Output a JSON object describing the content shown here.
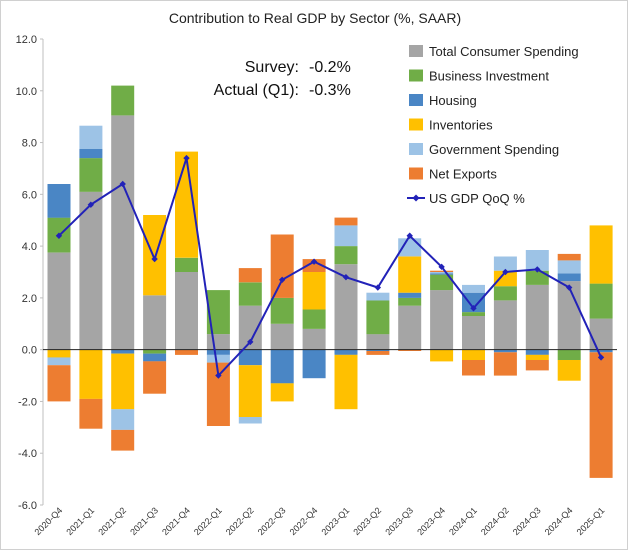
{
  "chart_data": {
    "type": "stacked-bar-with-line",
    "title": "Contribution to Real GDP by Sector (%, SAAR)",
    "ylim": [
      -6,
      12
    ],
    "yticks": [
      -6,
      -4,
      -2,
      0,
      2,
      4,
      6,
      8,
      10,
      12
    ],
    "ytick_labels": [
      "-6.0",
      "-4.0",
      "-2.0",
      "0.0",
      "2.0",
      "4.0",
      "6.0",
      "8.0",
      "10.0",
      "12.0"
    ],
    "categories": [
      "2020-Q4",
      "2021-Q1",
      "2021-Q2",
      "2021-Q3",
      "2021-Q4",
      "2022-Q1",
      "2022-Q2",
      "2022-Q3",
      "2022-Q4",
      "2023-Q1",
      "2023-Q2",
      "2023-Q3",
      "2023-Q4",
      "2024-Q1",
      "2024-Q2",
      "2024-Q3",
      "2024-Q4",
      "2025-Q1"
    ],
    "annotation": {
      "survey_label": "Survey:",
      "survey_value": "-0.2%",
      "actual_label": "Actual (Q1):",
      "actual_value": "-0.3%"
    },
    "series": [
      {
        "name": "Total Consumer Spending",
        "color": "#a5a5a5",
        "values": [
          3.75,
          6.1,
          9.05,
          2.1,
          3.0,
          0.6,
          1.7,
          1.0,
          0.8,
          3.3,
          0.6,
          1.7,
          2.3,
          1.3,
          1.9,
          2.5,
          2.65,
          1.2
        ]
      },
      {
        "name": "Business Investment",
        "color": "#70ad47",
        "values": [
          1.35,
          1.3,
          1.15,
          -0.15,
          0.55,
          1.7,
          0.9,
          1.0,
          0.75,
          0.7,
          1.3,
          0.3,
          0.6,
          0.15,
          0.55,
          0.55,
          -0.4,
          1.35
        ]
      },
      {
        "name": "Housing",
        "color": "#4a86c5",
        "values": [
          1.3,
          0.35,
          -0.15,
          -0.3,
          0.0,
          -0.2,
          -0.6,
          -1.3,
          -1.1,
          -0.2,
          -0.05,
          0.2,
          0.05,
          0.75,
          -0.1,
          -0.2,
          0.3,
          -0.1
        ]
      },
      {
        "name": "Inventories",
        "color": "#ffc000",
        "values": [
          -0.3,
          -1.9,
          -2.15,
          3.1,
          4.1,
          0.0,
          -2.0,
          -0.7,
          1.45,
          -2.1,
          0.0,
          1.4,
          -0.45,
          -0.4,
          0.6,
          -0.2,
          -0.8,
          2.25
        ]
      },
      {
        "name": "Government Spending",
        "color": "#9dc3e6",
        "values": [
          -0.3,
          0.9,
          -0.8,
          0.0,
          0.0,
          -0.3,
          -0.25,
          0.0,
          0.0,
          0.8,
          0.3,
          0.7,
          0.05,
          0.3,
          0.55,
          0.8,
          0.5,
          0.0
        ]
      },
      {
        "name": "Net Exports",
        "color": "#ed7d31",
        "values": [
          -1.4,
          -1.15,
          -0.8,
          -1.25,
          -0.2,
          -2.45,
          0.55,
          2.45,
          0.5,
          0.3,
          -0.15,
          -0.05,
          0.05,
          -0.6,
          -0.9,
          -0.4,
          0.25,
          -4.85
        ]
      }
    ],
    "line": {
      "name": "US GDP QoQ %",
      "color": "#2222b8",
      "values": [
        4.4,
        5.6,
        6.4,
        3.5,
        7.4,
        -1.0,
        0.3,
        2.7,
        3.4,
        2.8,
        2.4,
        4.4,
        3.2,
        1.6,
        3.0,
        3.1,
        2.4,
        -0.3
      ]
    },
    "legend_position": "top-right",
    "grid": false
  }
}
